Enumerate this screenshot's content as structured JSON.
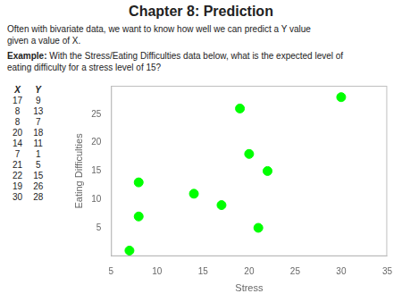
{
  "chart_data": {
    "type": "scatter",
    "title": "Chapter 8: Prediction",
    "annotations": [
      "Often with bivariate data, we want to know how well we can predict a Y value\ngiven a value of X.",
      "Example:",
      " With the Stress/Eating Difficulties data below, what is the expected level of\neating difficulty for a stress level of 15?",
      "X",
      "Y"
    ],
    "x": [
      17,
      8,
      8,
      20,
      14,
      7,
      21,
      22,
      19,
      30
    ],
    "values": [
      9,
      13,
      7,
      18,
      11,
      1,
      5,
      15,
      26,
      28
    ],
    "color": "#00FF00",
    "marker": "circle",
    "xlabel": "Stress",
    "ylabel": "Eating Difficulties",
    "xlim": [
      5,
      35
    ],
    "ylim": [
      0,
      30
    ],
    "xticks": [
      5,
      10,
      15,
      20,
      25,
      30,
      35
    ],
    "yticks": [
      5,
      10,
      15,
      20,
      25
    ],
    "grid": false
  }
}
